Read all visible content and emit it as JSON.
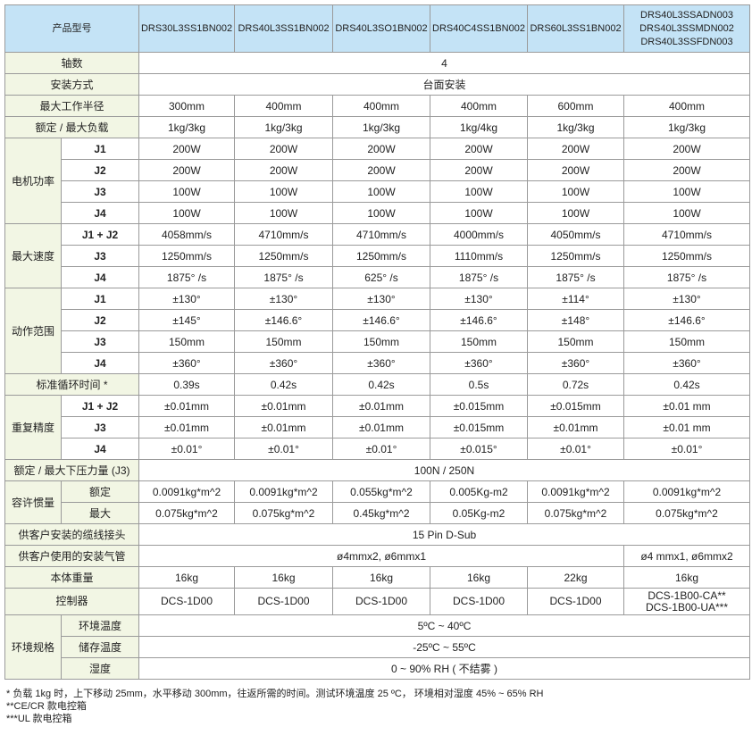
{
  "header": {
    "label": "产品型号",
    "models": [
      "DRS30L3SS1BN002",
      "DRS40L3SS1BN002",
      "DRS40L3SO1BN002",
      "DRS40C4SS1BN002",
      "DRS60L3SS1BN002",
      "DRS40L3SSADN003\nDRS40L3SSMDN002\nDRS40L3SSFDN003"
    ]
  },
  "rows": [
    {
      "label": "轴数",
      "values": [
        "4"
      ]
    },
    {
      "label": "安装方式",
      "values": [
        "台面安装"
      ]
    },
    {
      "label": "最大工作半径",
      "values": [
        "300mm",
        "400mm",
        "400mm",
        "400mm",
        "600mm",
        "400mm"
      ]
    },
    {
      "label": "额定 / 最大负载",
      "values": [
        "1kg/3kg",
        "1kg/3kg",
        "1kg/3kg",
        "1kg/4kg",
        "1kg/3kg",
        "1kg/3kg"
      ]
    },
    {
      "group": "电机功率",
      "label": "J1",
      "values": [
        "200W",
        "200W",
        "200W",
        "200W",
        "200W",
        "200W"
      ]
    },
    {
      "group": "电机功率",
      "label": "J2",
      "values": [
        "200W",
        "200W",
        "200W",
        "200W",
        "200W",
        "200W"
      ]
    },
    {
      "group": "电机功率",
      "label": "J3",
      "values": [
        "100W",
        "100W",
        "100W",
        "100W",
        "100W",
        "100W"
      ]
    },
    {
      "group": "电机功率",
      "label": "J4",
      "values": [
        "100W",
        "100W",
        "100W",
        "100W",
        "100W",
        "100W"
      ]
    },
    {
      "group": "最大速度",
      "label": "J1 + J2",
      "values": [
        "4058mm/s",
        "4710mm/s",
        "4710mm/s",
        "4000mm/s",
        "4050mm/s",
        "4710mm/s"
      ]
    },
    {
      "group": "最大速度",
      "label": "J3",
      "values": [
        "1250mm/s",
        "1250mm/s",
        "1250mm/s",
        "1110mm/s",
        "1250mm/s",
        "1250mm/s"
      ]
    },
    {
      "group": "最大速度",
      "label": "J4",
      "values": [
        "1875° /s",
        "1875° /s",
        "625° /s",
        "1875° /s",
        "1875° /s",
        "1875° /s"
      ]
    },
    {
      "group": "动作范围",
      "label": "J1",
      "values": [
        "±130°",
        "±130°",
        "±130°",
        "±130°",
        "±114°",
        "±130°"
      ]
    },
    {
      "group": "动作范围",
      "label": "J2",
      "values": [
        "±145°",
        "±146.6°",
        "±146.6°",
        "±146.6°",
        "±148°",
        "±146.6°"
      ]
    },
    {
      "group": "动作范围",
      "label": "J3",
      "values": [
        "150mm",
        "150mm",
        "150mm",
        "150mm",
        "150mm",
        "150mm"
      ]
    },
    {
      "group": "动作范围",
      "label": "J4",
      "values": [
        "±360°",
        "±360°",
        "±360°",
        "±360°",
        "±360°",
        "±360°"
      ]
    },
    {
      "label": "标准循环时间 *",
      "values": [
        "0.39s",
        "0.42s",
        "0.42s",
        "0.5s",
        "0.72s",
        "0.42s"
      ]
    },
    {
      "group": "重复精度",
      "label": "J1 + J2",
      "values": [
        "±0.01mm",
        "±0.01mm",
        "±0.01mm",
        "±0.015mm",
        "±0.015mm",
        "±0.01 mm"
      ]
    },
    {
      "group": "重复精度",
      "label": "J3",
      "values": [
        "±0.01mm",
        "±0.01mm",
        "±0.01mm",
        "±0.015mm",
        "±0.01mm",
        "±0.01 mm"
      ]
    },
    {
      "group": "重复精度",
      "label": "J4",
      "values": [
        "±0.01°",
        "±0.01°",
        "±0.01°",
        "±0.015°",
        "±0.01°",
        "±0.01°"
      ]
    },
    {
      "label": "额定 / 最大下压力量 (J3)",
      "values": [
        "100N / 250N"
      ]
    },
    {
      "group": "容许惯量",
      "label": "额定",
      "values": [
        "0.0091kg*m^2",
        "0.0091kg*m^2",
        "0.055kg*m^2",
        "0.005Kg-m2",
        "0.0091kg*m^2",
        "0.0091kg*m^2"
      ]
    },
    {
      "group": "容许惯量",
      "label": "最大",
      "values": [
        "0.075kg*m^2",
        "0.075kg*m^2",
        "0.45kg*m^2",
        "0.05Kg-m2",
        "0.075kg*m^2",
        "0.075kg*m^2"
      ]
    },
    {
      "label": "供客户安装的缆线接头",
      "values": [
        "15 Pin D-Sub"
      ]
    },
    {
      "label": "供客户使用的安装气管",
      "values": [
        "ø4mmx2, ø6mmx1",
        "ø4 mmx1, ø6mmx2"
      ]
    },
    {
      "label": "本体重量",
      "values": [
        "16kg",
        "16kg",
        "16kg",
        "16kg",
        "22kg",
        "16kg"
      ]
    },
    {
      "label": "控制器",
      "values": [
        "DCS-1D00",
        "DCS-1D00",
        "DCS-1D00",
        "DCS-1D00",
        "DCS-1D00",
        "DCS-1B00-CA**\nDCS-1B00-UA***"
      ]
    },
    {
      "group": "环境规格",
      "label": "环境温度",
      "values": [
        "5ºC ~ 40ºC"
      ]
    },
    {
      "group": "环境规格",
      "label": "储存温度",
      "values": [
        "-25ºC ~ 55ºC"
      ]
    },
    {
      "group": "环境规格",
      "label": "湿度",
      "values": [
        "0 ~ 90% RH ( 不结雾 )"
      ]
    }
  ],
  "notes": [
    "* 负载 1kg 时，上下移动 25mm，水平移动 300mm，往返所需的时间。测试环境温度 25 ºC， 环境相对湿度 45% ~ 65% RH",
    "**CE/CR 款电控箱",
    "***UL 款电控箱"
  ],
  "colors": {
    "header_bg": "#c4e3f6",
    "label_bg": "#f2f6e4",
    "border": "#9a9a9a"
  }
}
